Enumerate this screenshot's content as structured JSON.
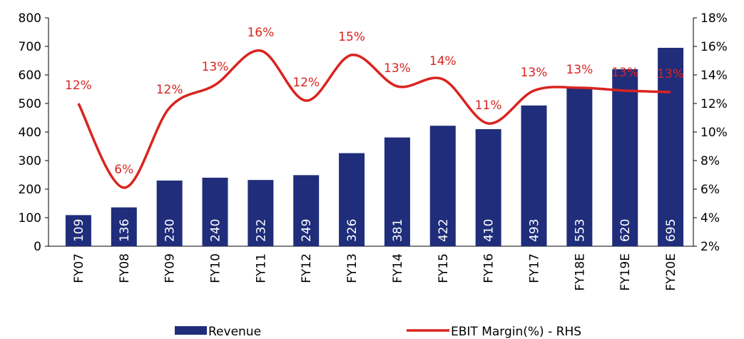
{
  "chart_data": {
    "type": "bar-line",
    "categories": [
      "FY07",
      "FY08",
      "FY09",
      "FY10",
      "FY11",
      "FY12",
      "FY13",
      "FY14",
      "FY15",
      "FY16",
      "FY17",
      "FY18E",
      "FY19E",
      "FY20E"
    ],
    "series": [
      {
        "name": "Revenue",
        "type": "bar",
        "color": "#1f2d7b",
        "axis": "y",
        "values": [
          109,
          136,
          230,
          240,
          232,
          249,
          326,
          381,
          422,
          410,
          493,
          553,
          620,
          695
        ]
      },
      {
        "name": "EBIT Margin(%) - RHS",
        "type": "line",
        "color": "#d9241f",
        "axis": "y2",
        "values": [
          12.0,
          6.1,
          11.7,
          13.3,
          15.7,
          12.2,
          15.4,
          13.2,
          13.7,
          10.6,
          12.9,
          13.1,
          12.9,
          12.8
        ],
        "value_labels": [
          "12%",
          "6%",
          "12%",
          "13%",
          "16%",
          "12%",
          "15%",
          "13%",
          "14%",
          "11%",
          "13%",
          "13%",
          "13%",
          "13%"
        ]
      }
    ],
    "ylim": [
      0,
      800
    ],
    "yticks": [
      0,
      100,
      200,
      300,
      400,
      500,
      600,
      700,
      800
    ],
    "y2lim": [
      2,
      18
    ],
    "y2ticks": [
      {
        "value": 2,
        "label": "2%"
      },
      {
        "value": 4,
        "label": "4%"
      },
      {
        "value": 6,
        "label": "6%"
      },
      {
        "value": 8,
        "label": "8%"
      },
      {
        "value": 10,
        "label": "10%"
      },
      {
        "value": 12,
        "label": "12%"
      },
      {
        "value": 14,
        "label": "14%"
      },
      {
        "value": 16,
        "label": "16%"
      },
      {
        "value": 18,
        "label": "18%"
      }
    ],
    "legend": "bottom"
  }
}
